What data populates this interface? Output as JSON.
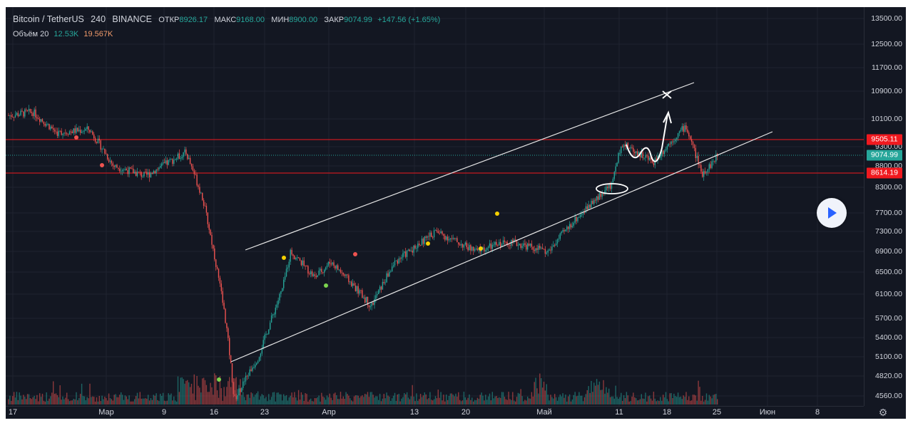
{
  "legend": {
    "symbol": "Bitcoin / TetherUS",
    "interval": "240",
    "exchange": "BINANCE",
    "open_label": "ОТКР",
    "open_value": "8926.17",
    "high_label": "МАКС",
    "high_value": "9168.00",
    "low_label": "МИН",
    "low_value": "8900.00",
    "close_label": "ЗАКР",
    "close_value": "9074.99",
    "change": "+147.56 (+1.65%)",
    "volume_label": "Объём 20",
    "volume_value": "12.53K",
    "volume_ma": "19.567K"
  },
  "price_axis": {
    "ticks": [
      "13500.00",
      "12500.00",
      "11700.00",
      "10900.00",
      "10100.00",
      "9300.00",
      "8800.00",
      "8300.00",
      "7700.00",
      "7300.00",
      "6900.00",
      "6500.00",
      "6100.00",
      "5700.00",
      "5400.00",
      "5100.00",
      "4820.00",
      "4560.00"
    ],
    "badges": [
      {
        "label": "9505.11",
        "price": 9505.11,
        "color": "#f0191f"
      },
      {
        "label": "9074.99",
        "price": 9074.99,
        "color": "#26a69a"
      },
      {
        "label": "8614.19",
        "price": 8614.19,
        "color": "#f0191f"
      }
    ]
  },
  "time_axis": {
    "ticks": [
      "17",
      "Мар",
      "9",
      "16",
      "23",
      "Апр",
      "13",
      "20",
      "Май",
      "11",
      "18",
      "25",
      "Июн",
      "8"
    ]
  },
  "colors": {
    "background": "#131722",
    "grid": "#1f2330",
    "up": "#26a69a",
    "down": "#ef5350",
    "level_line": "#f0191f",
    "channel": "#ffffff"
  },
  "chart_data": {
    "type": "candlestick",
    "symbol": "Bitcoin / TetherUS",
    "interval": "240",
    "period": "2020-02-14 to 2020-05-12",
    "horizontal_levels": [
      9505.11,
      8614.19
    ],
    "last_price": 9074.99,
    "ylim": [
      4450,
      14200
    ],
    "approx_path": [
      {
        "date": "2020-02-14",
        "price": 10200
      },
      {
        "date": "2020-02-17",
        "price": 10300
      },
      {
        "date": "2020-02-20",
        "price": 9700
      },
      {
        "date": "2020-02-24",
        "price": 9800
      },
      {
        "date": "2020-02-27",
        "price": 8800
      },
      {
        "date": "2020-03-02",
        "price": 8550
      },
      {
        "date": "2020-03-07",
        "price": 9150
      },
      {
        "date": "2020-03-09",
        "price": 8100
      },
      {
        "date": "2020-03-12",
        "price": 5600
      },
      {
        "date": "2020-03-13",
        "price": 4500
      },
      {
        "date": "2020-03-16",
        "price": 5100
      },
      {
        "date": "2020-03-19",
        "price": 6200
      },
      {
        "date": "2020-03-20",
        "price": 6900
      },
      {
        "date": "2020-03-23",
        "price": 6400
      },
      {
        "date": "2020-03-25",
        "price": 6700
      },
      {
        "date": "2020-03-30",
        "price": 5900
      },
      {
        "date": "2020-04-02",
        "price": 6700
      },
      {
        "date": "2020-04-07",
        "price": 7300
      },
      {
        "date": "2020-04-12",
        "price": 6900
      },
      {
        "date": "2020-04-16",
        "price": 7100
      },
      {
        "date": "2020-04-21",
        "price": 6900
      },
      {
        "date": "2020-04-24",
        "price": 7500
      },
      {
        "date": "2020-04-29",
        "price": 8400
      },
      {
        "date": "2020-04-30",
        "price": 9400
      },
      {
        "date": "2020-05-04",
        "price": 8900
      },
      {
        "date": "2020-05-08",
        "price": 9900
      },
      {
        "date": "2020-05-10",
        "price": 8600
      },
      {
        "date": "2020-05-11",
        "price": 8800
      },
      {
        "date": "2020-05-12",
        "price": 9075
      }
    ],
    "channel": {
      "upper": [
        {
          "date": "2020-03-20",
          "price": 6900
        },
        {
          "date": "2020-05-23",
          "price": 11400
        }
      ],
      "lower": [
        {
          "date": "2020-03-17",
          "price": 5000
        },
        {
          "date": "2020-06-01",
          "price": 9900
        }
      ]
    }
  }
}
